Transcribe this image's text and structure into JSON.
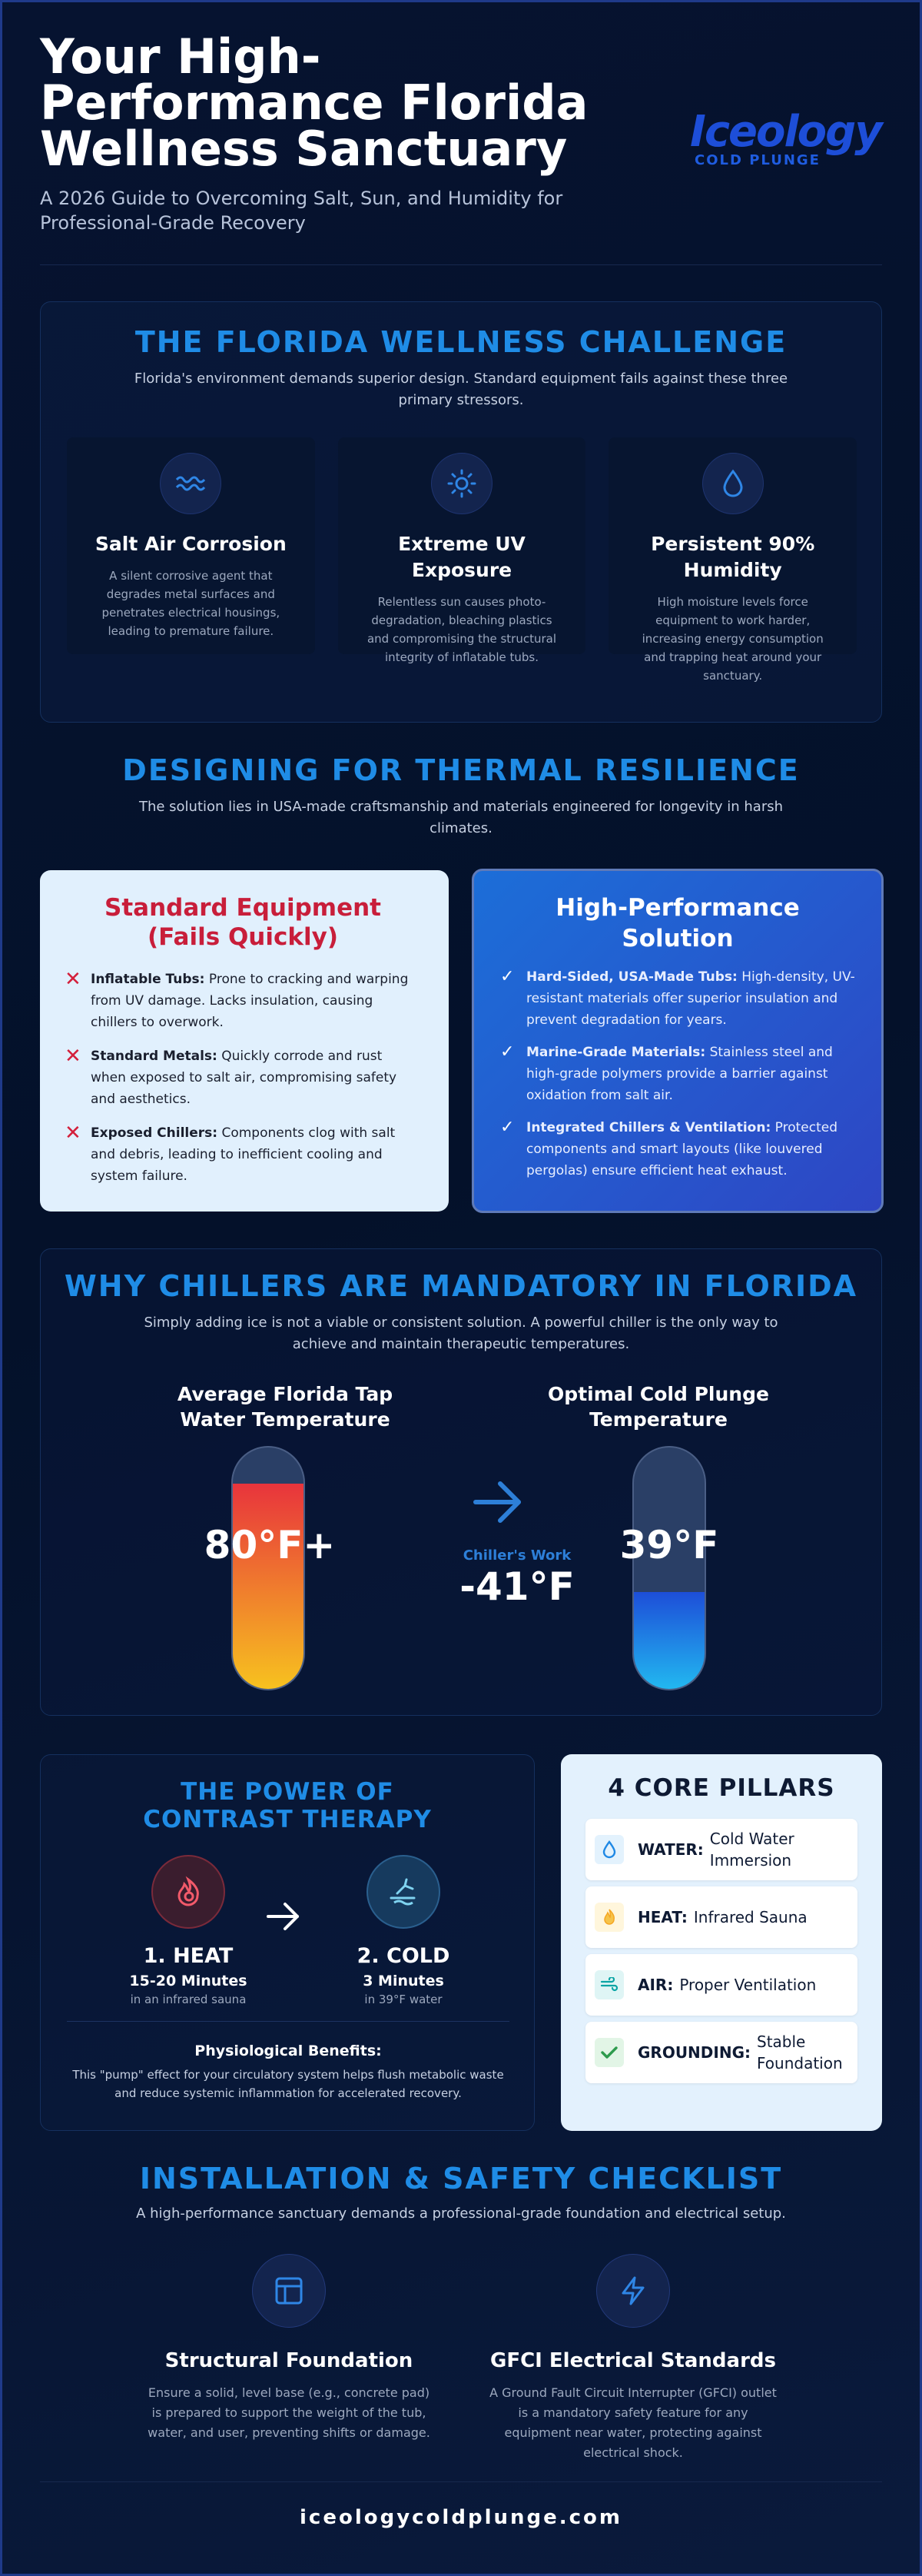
{
  "header": {
    "title": "Your High-Performance Florida Wellness Sanctuary",
    "subtitle": "A 2026 Guide to Overcoming Salt, Sun, and Humidity for Professional-Grade Recovery",
    "logo_mark": "Iceology",
    "logo_sub": "COLD PLUNGE"
  },
  "challenge": {
    "title": "THE FLORIDA WELLNESS CHALLENGE",
    "subtitle": "Florida's environment demands superior design. Standard equipment fails against these three primary stressors.",
    "cards": [
      {
        "icon": "wave-icon",
        "title": "Salt Air Corrosion",
        "text": "A silent corrosive agent that degrades metal surfaces and penetrates electrical housings, leading to premature failure."
      },
      {
        "icon": "sun-icon",
        "title": "Extreme UV Exposure",
        "text": "Relentless sun causes photo-degradation, bleaching plastics and compromising the structural integrity of inflatable tubs."
      },
      {
        "icon": "droplet-icon",
        "title": "Persistent 90% Humidity",
        "text": "High moisture levels force equipment to work harder, increasing energy consumption and trapping heat around your sanctuary."
      }
    ]
  },
  "thermal": {
    "title": "DESIGNING FOR THERMAL RESILIENCE",
    "subtitle": "The solution lies in USA-made craftsmanship and materials engineered for longevity in harsh climates.",
    "standard": {
      "title": "Standard Equipment (Fails Quickly)",
      "items": [
        {
          "bold": "Inflatable Tubs:",
          "text": " Prone to cracking and warping from UV damage. Lacks insulation, causing chillers to overwork."
        },
        {
          "bold": "Standard Metals:",
          "text": " Quickly corrode and rust when exposed to salt air, compromising safety and aesthetics."
        },
        {
          "bold": "Exposed Chillers:",
          "text": " Components clog with salt and debris, leading to inefficient cooling and system failure."
        }
      ]
    },
    "solution": {
      "title": "High-Performance Solution",
      "items": [
        {
          "bold": "Hard-Sided, USA-Made Tubs:",
          "text": " High-density, UV-resistant materials offer superior insulation and prevent degradation for years."
        },
        {
          "bold": "Marine-Grade Materials:",
          "text": " Stainless steel and high-grade polymers provide a barrier against oxidation from salt air."
        },
        {
          "bold": "Integrated Chillers & Ventilation:",
          "text": " Protected components and smart layouts (like louvered pergolas) ensure efficient heat exhaust."
        }
      ]
    }
  },
  "chillers": {
    "title": "WHY CHILLERS ARE MANDATORY IN FLORIDA",
    "subtitle": "Simply adding ice is not a viable or consistent solution. A powerful chiller is the only way to achieve and maintain therapeutic temperatures.",
    "tap_label": "Average Florida Tap Water Temperature",
    "tap_temp": "80°F+",
    "tap_fill": 0.85,
    "work_label": "Chiller's Work",
    "work_delta": "-41°F",
    "plunge_label": "Optimal Cold Plunge Temperature",
    "plunge_temp": "39°F",
    "plunge_fill": 0.4,
    "colors": {
      "hot_top": "#e8343c",
      "hot_bottom": "#f7c21f",
      "cold_top": "#1d4ed8",
      "cold_bottom": "#22b8f0"
    }
  },
  "contrast": {
    "title": "THE POWER OF CONTRAST THERAPY",
    "heat": {
      "title": "1. HEAT",
      "duration": "15-20 Minutes",
      "where": "in an infrared sauna"
    },
    "cold": {
      "title": "2. COLD",
      "duration": "3 Minutes",
      "where": "in 39°F water"
    },
    "benefits_title": "Physiological Benefits:",
    "benefits_text": "This \"pump\" effect for your circulatory system helps flush metabolic waste and reduce systemic inflammation for accelerated recovery."
  },
  "pillars": {
    "title": "4 CORE PILLARS",
    "items": [
      {
        "name": "WATER:",
        "text": "Cold Water Immersion",
        "icon": "droplet-icon",
        "color": "#1e88e5",
        "bg": "#e3f2fd"
      },
      {
        "name": "HEAT:",
        "text": "Infrared Sauna",
        "icon": "flame-icon",
        "color": "#f5a623",
        "bg": "#fff6dc"
      },
      {
        "name": "AIR:",
        "text": "Proper Ventilation",
        "icon": "wind-icon",
        "color": "#0aa5a5",
        "bg": "#dff5f5"
      },
      {
        "name": "GROUNDING:",
        "text": "Stable Foundation",
        "icon": "check-icon",
        "color": "#2e9b4d",
        "bg": "#e2f5e6"
      }
    ]
  },
  "install": {
    "title": "INSTALLATION & SAFETY CHECKLIST",
    "subtitle": "A high-performance sanctuary demands a professional-grade foundation and electrical setup.",
    "items": [
      {
        "title": "Structural Foundation",
        "text": "Ensure a solid, level base (e.g., concrete pad) is prepared to support the weight of the tub, water, and user, preventing shifts or damage."
      },
      {
        "title": "GFCI Electrical Standards",
        "text": "A Ground Fault Circuit Interrupter (GFCI) outlet is a mandatory safety feature for any equipment near water, protecting against electrical shock."
      }
    ]
  },
  "footer": {
    "url": "iceologycoldplunge.com"
  }
}
